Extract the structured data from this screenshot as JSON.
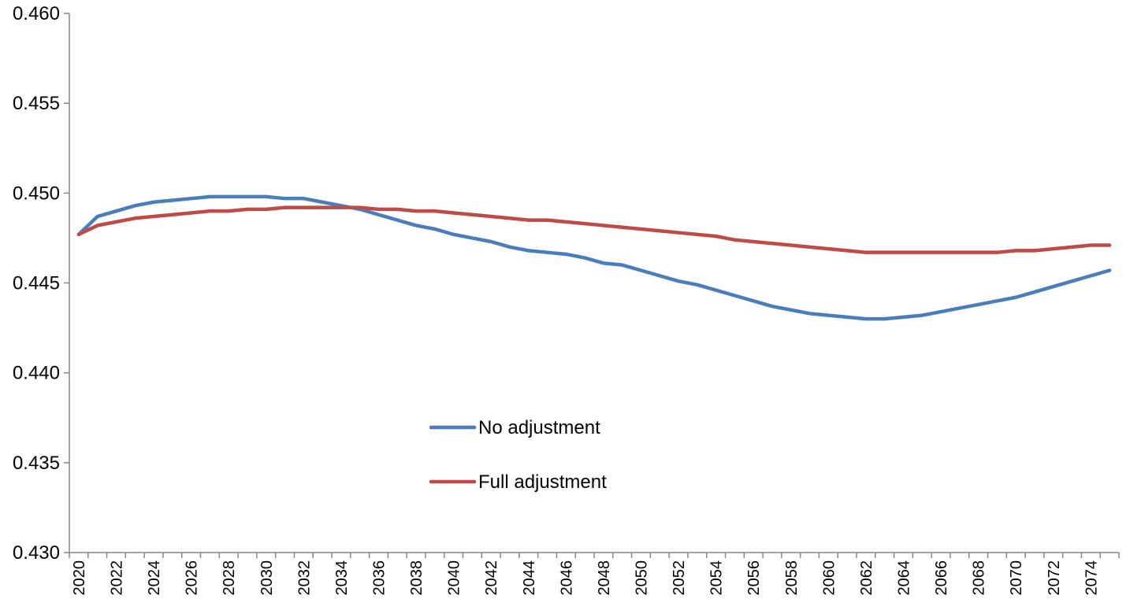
{
  "chart_data": {
    "type": "line",
    "title": "",
    "xlabel": "",
    "ylabel": "",
    "x": [
      2020,
      2021,
      2022,
      2023,
      2024,
      2025,
      2026,
      2027,
      2028,
      2029,
      2030,
      2031,
      2032,
      2033,
      2034,
      2035,
      2036,
      2037,
      2038,
      2039,
      2040,
      2041,
      2042,
      2043,
      2044,
      2045,
      2046,
      2047,
      2048,
      2049,
      2050,
      2051,
      2052,
      2053,
      2054,
      2055,
      2056,
      2057,
      2058,
      2059,
      2060,
      2061,
      2062,
      2063,
      2064,
      2065,
      2066,
      2067,
      2068,
      2069,
      2070,
      2071,
      2072,
      2073,
      2074,
      2075
    ],
    "xlim": [
      2020,
      2075
    ],
    "ylim": [
      0.43,
      0.46
    ],
    "yticks": [
      "0.430",
      "0.435",
      "0.440",
      "0.445",
      "0.450",
      "0.455",
      "0.460"
    ],
    "xticks": [
      "2020",
      "2022",
      "2024",
      "2026",
      "2028",
      "2030",
      "2032",
      "2034",
      "2036",
      "2038",
      "2040",
      "2042",
      "2044",
      "2046",
      "2048",
      "2050",
      "2052",
      "2054",
      "2056",
      "2058",
      "2060",
      "2062",
      "2064",
      "2066",
      "2068",
      "2070",
      "2072",
      "2074"
    ],
    "grid": false,
    "legend_position": "middle-left",
    "series": [
      {
        "name": "No adjustment",
        "color": "#4a7ebb",
        "values": [
          0.4477,
          0.4487,
          0.449,
          0.4493,
          0.4495,
          0.4496,
          0.4497,
          0.4498,
          0.4498,
          0.4498,
          0.4498,
          0.4497,
          0.4497,
          0.4495,
          0.4493,
          0.4491,
          0.4488,
          0.4485,
          0.4482,
          0.448,
          0.4477,
          0.4475,
          0.4473,
          0.447,
          0.4468,
          0.4467,
          0.4466,
          0.4464,
          0.4461,
          0.446,
          0.4457,
          0.4454,
          0.4451,
          0.4449,
          0.4446,
          0.4443,
          0.444,
          0.4437,
          0.4435,
          0.4433,
          0.4432,
          0.4431,
          0.443,
          0.443,
          0.4431,
          0.4432,
          0.4434,
          0.4436,
          0.4438,
          0.444,
          0.4442,
          0.4445,
          0.4448,
          0.4451,
          0.4454,
          0.4457
        ]
      },
      {
        "name": "Full adjustment",
        "color": "#be4b48",
        "values": [
          0.4477,
          0.4482,
          0.4484,
          0.4486,
          0.4487,
          0.4488,
          0.4489,
          0.449,
          0.449,
          0.4491,
          0.4491,
          0.4492,
          0.4492,
          0.4492,
          0.4492,
          0.4492,
          0.4491,
          0.4491,
          0.449,
          0.449,
          0.4489,
          0.4488,
          0.4487,
          0.4486,
          0.4485,
          0.4485,
          0.4484,
          0.4483,
          0.4482,
          0.4481,
          0.448,
          0.4479,
          0.4478,
          0.4477,
          0.4476,
          0.4474,
          0.4473,
          0.4472,
          0.4471,
          0.447,
          0.4469,
          0.4468,
          0.4467,
          0.4467,
          0.4467,
          0.4467,
          0.4467,
          0.4467,
          0.4467,
          0.4467,
          0.4468,
          0.4468,
          0.4469,
          0.447,
          0.4471,
          0.4471
        ]
      }
    ]
  }
}
